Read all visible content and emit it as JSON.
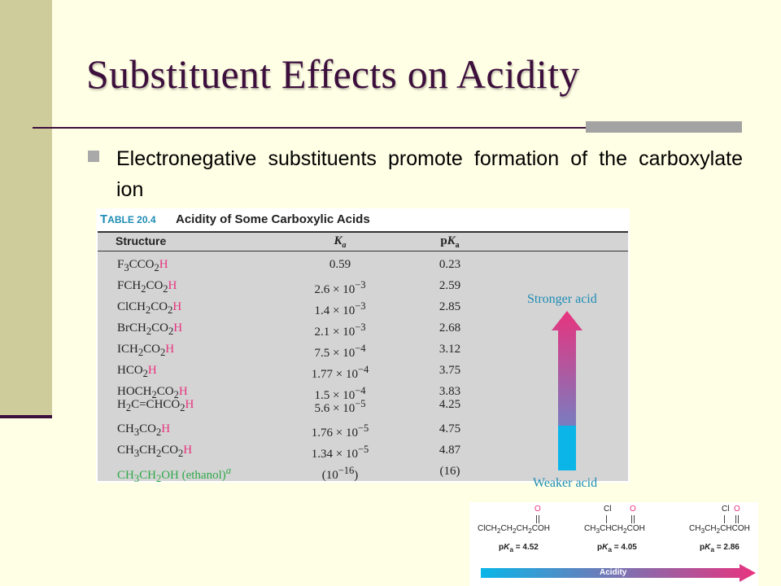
{
  "slide": {
    "title": "Substituent Effects on Acidity",
    "bullet": "Electronegative substituents promote formation of the carboxylate ion"
  },
  "table": {
    "label": "Table 20.4",
    "title": "Acidity of Some Carboxylic Acids",
    "headers": {
      "structure": "Structure",
      "ka": "K",
      "ka_sub": "a",
      "pka": "pK",
      "pka_sub": "a"
    },
    "rows": [
      {
        "structure": "F3CCO2H",
        "ka": "0.59",
        "pka": "0.23"
      },
      {
        "structure": "FCH2CO2H",
        "ka": "2.6 × 10−3",
        "pka": "2.59"
      },
      {
        "structure": "ClCH2CO2H",
        "ka": "1.4 × 10−3",
        "pka": "2.85"
      },
      {
        "structure": "BrCH2CO2H",
        "ka": "2.1 × 10−3",
        "pka": "2.68"
      },
      {
        "structure": "ICH2CO2H",
        "ka": "7.5 × 10−4",
        "pka": "3.12"
      },
      {
        "structure": "HCO2H",
        "ka": "1.77 × 10−4",
        "pka": "3.75"
      },
      {
        "structure": "HOCH2CO2H",
        "ka": "1.5 × 10−4",
        "pka": "3.83"
      },
      {
        "structure": "H2C=CHCO2H",
        "ka": "5.6 × 10−5",
        "pka": "4.25"
      },
      {
        "structure": "CH3CO2H",
        "ka": "1.76 × 10−5",
        "pka": "4.75"
      },
      {
        "structure": "CH3CH2CO2H",
        "ka": "1.34 × 10−5",
        "pka": "4.87"
      },
      {
        "structure": "CH3CH2OH (ethanol)a",
        "ka": "(10−16)",
        "pka": "(16)"
      }
    ],
    "arrow": {
      "top_label": "Stronger acid",
      "bottom_label": "Weaker acid",
      "top_color": "#E8337E",
      "bottom_color": "#0BB5E8"
    }
  },
  "inset": {
    "molecules": [
      {
        "formula": "ClCH2CH2CH2COH",
        "pka_label": "pKa = 4.52"
      },
      {
        "formula": "CH3CHCH2COH",
        "substituent": "Cl",
        "pka_label": "pKa = 4.05"
      },
      {
        "formula": "CH3CH2CHCOH",
        "substituent": "Cl",
        "pka_label": "pKa = 2.86"
      }
    ],
    "carbonyl_o": "O",
    "arrow_label": "Acidity"
  }
}
